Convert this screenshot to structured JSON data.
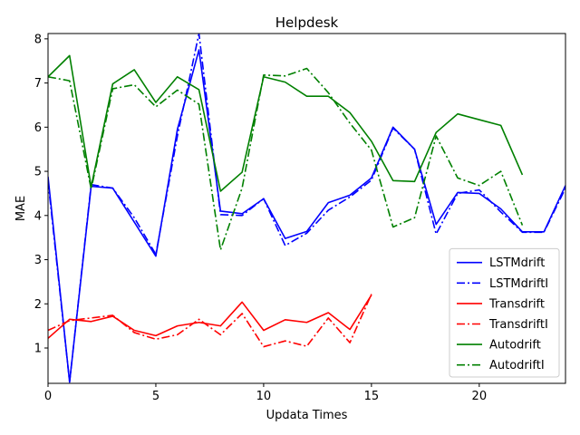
{
  "chart_data": {
    "type": "line",
    "title": "Helpdesk",
    "xlabel": "Updata Times",
    "ylabel": "MAE",
    "xlim": [
      0,
      24
    ],
    "ylim": [
      0.2,
      8.12
    ],
    "xticks": [
      0,
      5,
      10,
      15,
      20
    ],
    "yticks": [
      1,
      2,
      3,
      4,
      5,
      6,
      7,
      8
    ],
    "grid": false,
    "legend_position": "lower-right",
    "series": [
      {
        "name": "LSTMdrift",
        "color": "#0000ff",
        "style": "solid",
        "x": [
          0,
          1,
          2,
          3,
          4,
          5,
          6,
          7,
          8,
          9,
          10,
          11,
          12,
          13,
          14,
          15,
          16,
          17,
          18,
          19,
          20,
          21,
          22,
          23,
          24
        ],
        "y": [
          4.88,
          0.23,
          4.66,
          4.62,
          3.85,
          3.08,
          5.95,
          7.75,
          4.1,
          4.04,
          4.38,
          3.48,
          3.64,
          4.29,
          4.46,
          4.85,
          6.0,
          5.5,
          3.8,
          4.52,
          4.5,
          4.15,
          3.63,
          3.63,
          4.68
        ]
      },
      {
        "name": "LSTMdriftI",
        "color": "#0000ff",
        "style": "dashdot",
        "x": [
          0,
          1,
          2,
          3,
          4,
          5,
          6,
          7,
          8,
          9,
          10,
          11,
          12,
          13,
          14,
          15,
          16,
          17,
          18,
          19,
          20,
          21,
          22,
          23,
          24
        ],
        "y": [
          4.78,
          0.23,
          4.7,
          4.62,
          3.95,
          3.12,
          5.8,
          8.12,
          4.02,
          4.0,
          4.38,
          3.32,
          3.6,
          4.12,
          4.42,
          4.8,
          5.98,
          5.5,
          3.58,
          4.5,
          4.58,
          4.08,
          3.62,
          3.62,
          4.62
        ]
      },
      {
        "name": "Transdrift",
        "color": "#ff0000",
        "style": "solid",
        "x": [
          0,
          1,
          2,
          3,
          4,
          5,
          6,
          7,
          8,
          9,
          10,
          11,
          12,
          13,
          14,
          15
        ],
        "y": [
          1.22,
          1.65,
          1.6,
          1.72,
          1.4,
          1.28,
          1.5,
          1.58,
          1.5,
          2.04,
          1.4,
          1.64,
          1.58,
          1.8,
          1.42,
          2.2
        ]
      },
      {
        "name": "TransdriftI",
        "color": "#ff0000",
        "style": "dashdot",
        "x": [
          0,
          1,
          2,
          3,
          4,
          5,
          6,
          7,
          8,
          9,
          10,
          11,
          12,
          13,
          14,
          15
        ],
        "y": [
          1.4,
          1.62,
          1.68,
          1.74,
          1.35,
          1.2,
          1.3,
          1.65,
          1.3,
          1.78,
          1.03,
          1.16,
          1.04,
          1.68,
          1.12,
          2.22
        ]
      },
      {
        "name": "Autodrift",
        "color": "#008000",
        "style": "solid",
        "x": [
          0,
          1,
          2,
          3,
          4,
          5,
          6,
          7,
          8,
          9,
          10,
          11,
          12,
          13,
          14,
          15,
          16,
          17,
          18,
          19,
          20,
          21,
          22
        ],
        "y": [
          7.14,
          7.62,
          4.65,
          6.98,
          7.3,
          6.56,
          7.14,
          6.85,
          4.55,
          4.98,
          7.14,
          7.02,
          6.7,
          6.7,
          6.33,
          5.68,
          4.79,
          4.77,
          5.88,
          6.3,
          6.17,
          6.04,
          4.92
        ]
      },
      {
        "name": "AutodriftI",
        "color": "#008000",
        "style": "dashdot",
        "x": [
          0,
          1,
          2,
          3,
          4,
          5,
          6,
          7,
          8,
          9,
          10,
          11,
          12,
          13,
          14,
          15,
          16,
          17,
          18,
          19,
          20,
          21,
          22
        ],
        "y": [
          7.14,
          7.05,
          4.6,
          6.87,
          6.96,
          6.46,
          6.84,
          6.52,
          3.22,
          4.62,
          7.18,
          7.16,
          7.33,
          6.78,
          6.09,
          5.48,
          3.74,
          3.95,
          5.8,
          4.85,
          4.68,
          5.0,
          3.78
        ]
      }
    ]
  }
}
